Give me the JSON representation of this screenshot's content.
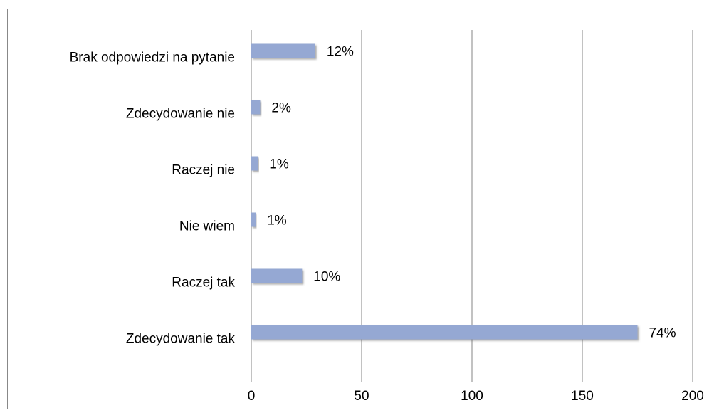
{
  "chart_data": {
    "type": "bar",
    "categories": [
      "Brak odpowiedzi na pytanie",
      "Zdecydowanie nie",
      "Raczej nie ",
      "Nie wiem",
      "Raczej tak",
      "Zdecydowanie tak"
    ],
    "values": [
      29,
      4,
      3,
      2,
      23,
      175
    ],
    "value_labels": [
      "12%",
      "2%",
      "1%",
      "1%",
      "10%",
      "74%"
    ],
    "color": "#95a8d3",
    "xlim": [
      0,
      200
    ],
    "xticks": [
      0,
      50,
      100,
      150,
      200
    ],
    "grid": true
  }
}
